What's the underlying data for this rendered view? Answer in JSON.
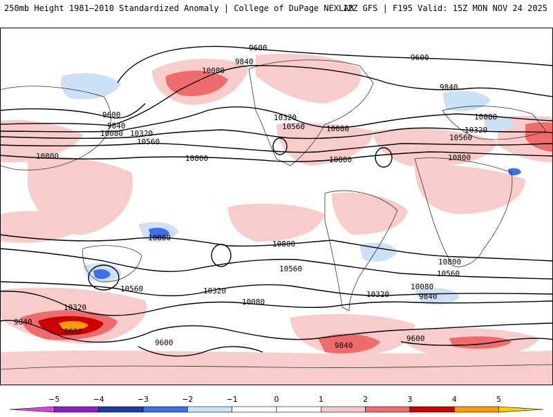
{
  "header": {
    "left_title": "250mb Height 1981–2010 Standardized Anomaly | College of DuPage NEXLAB",
    "right_title": "12Z GFS | F195 Valid: 15Z MON NOV 24 2025"
  },
  "map": {
    "contour_labels": [
      {
        "id": "c9600-np1",
        "text": "9600"
      },
      {
        "id": "c9600-np2",
        "text": "9600"
      },
      {
        "id": "c9840-n1",
        "text": "9840"
      },
      {
        "id": "c10080-pac",
        "text": "10080"
      },
      {
        "id": "c9840-atl",
        "text": "9840"
      },
      {
        "id": "c9600-asia",
        "text": "9600"
      },
      {
        "id": "c9840-asia",
        "text": "9840"
      },
      {
        "id": "c10080-asia",
        "text": "10080"
      },
      {
        "id": "c10320-asia",
        "text": "10320"
      },
      {
        "id": "c10560-asia",
        "text": "10560"
      },
      {
        "id": "c10800-asia",
        "text": "10800"
      },
      {
        "id": "c10800-pac",
        "text": "10800"
      },
      {
        "id": "c10320-us",
        "text": "10320"
      },
      {
        "id": "c10560-us",
        "text": "10560"
      },
      {
        "id": "c10080-us",
        "text": "10080"
      },
      {
        "id": "c10800-us",
        "text": "10800"
      },
      {
        "id": "c10080-eu",
        "text": "10080"
      },
      {
        "id": "c10320-eu",
        "text": "10320"
      },
      {
        "id": "c10560-eu",
        "text": "10560"
      },
      {
        "id": "c10800-af",
        "text": "10800"
      },
      {
        "id": "c10800-aus",
        "text": "10800"
      },
      {
        "id": "c10800-sp",
        "text": "10800"
      },
      {
        "id": "c10560-sp",
        "text": "10560"
      },
      {
        "id": "c10560-sa",
        "text": "10560"
      },
      {
        "id": "c10800-sa",
        "text": "10800"
      },
      {
        "id": "c10560-io",
        "text": "10560"
      },
      {
        "id": "c10320-sa",
        "text": "10320"
      },
      {
        "id": "c10080-sa",
        "text": "10080"
      },
      {
        "id": "c9840-sa",
        "text": "9840"
      },
      {
        "id": "c10320-so",
        "text": "10320"
      },
      {
        "id": "c10080-so",
        "text": "10080"
      },
      {
        "id": "c10320-aus",
        "text": "10320"
      },
      {
        "id": "c9840-sw",
        "text": "9840"
      },
      {
        "id": "c10080-sw",
        "text": "10080"
      },
      {
        "id": "c9600-ant",
        "text": "9600"
      },
      {
        "id": "c9840-ant",
        "text": "9840"
      },
      {
        "id": "c9600-ant2",
        "text": "9600"
      }
    ]
  },
  "colorbar": {
    "ticks": [
      "−5",
      "−4",
      "−3",
      "−2",
      "−1",
      "0",
      "1",
      "2",
      "3",
      "4",
      "5"
    ],
    "bins": [
      {
        "from": -6,
        "to": -5,
        "color": "#e040e0"
      },
      {
        "from": -5,
        "to": -4,
        "color": "#8a1fc9"
      },
      {
        "from": -4,
        "to": -3,
        "color": "#1e3ca8"
      },
      {
        "from": -3,
        "to": -2,
        "color": "#3d70e6"
      },
      {
        "from": -2,
        "to": -1,
        "color": "#cde1f6"
      },
      {
        "from": -1,
        "to": 0,
        "color": "#ffffff"
      },
      {
        "from": 0,
        "to": 1,
        "color": "#ffffff"
      },
      {
        "from": 1,
        "to": 2,
        "color": "#f8c8c8"
      },
      {
        "from": 2,
        "to": 3,
        "color": "#ee6c6c"
      },
      {
        "from": 3,
        "to": 4,
        "color": "#cc0000"
      },
      {
        "from": 4,
        "to": 5,
        "color": "#ff9a00"
      },
      {
        "from": 5,
        "to": 6,
        "color": "#ffd000"
      }
    ]
  }
}
